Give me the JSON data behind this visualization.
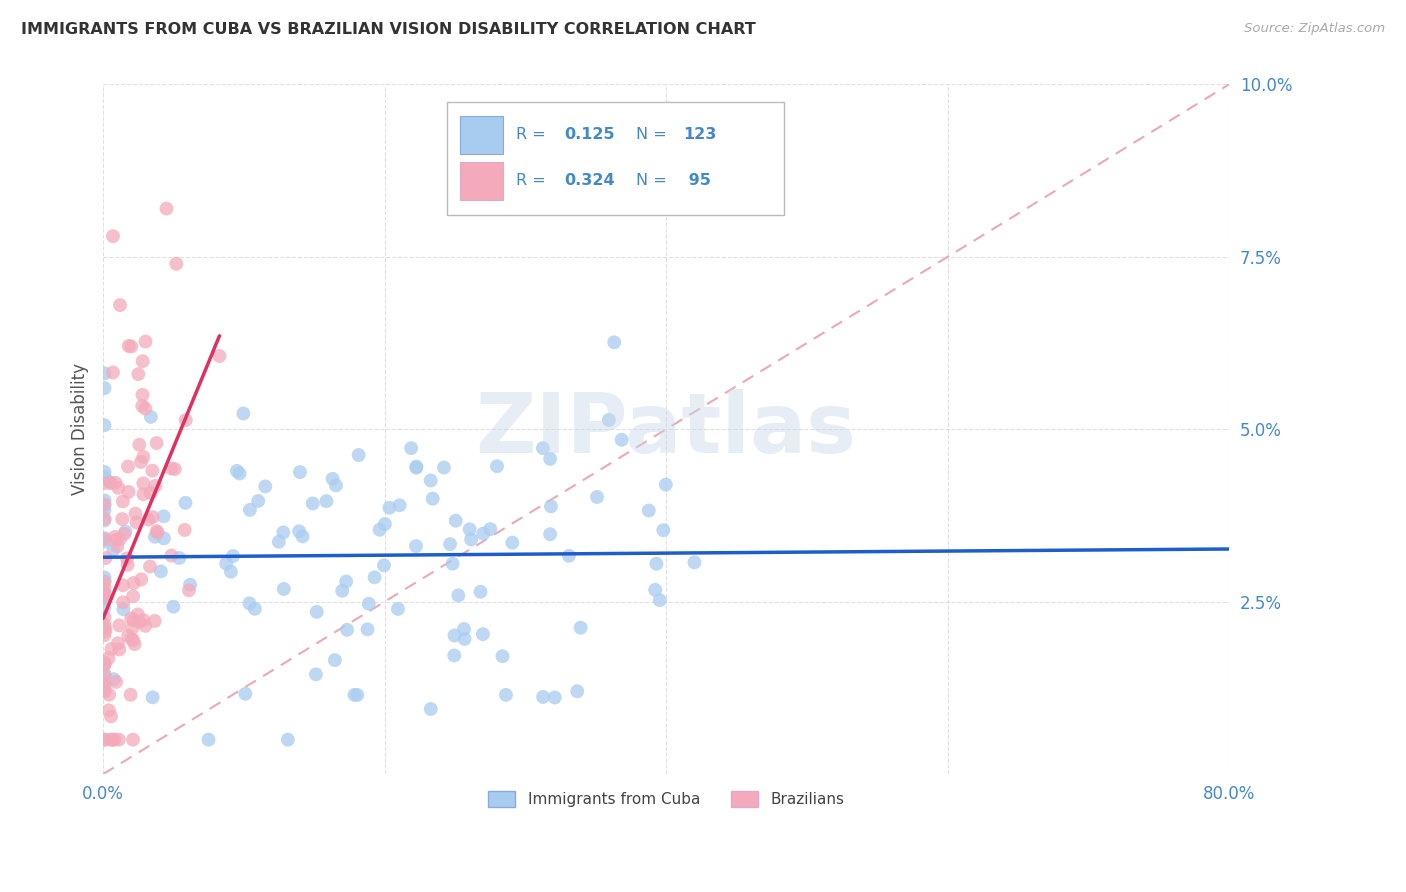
{
  "title": "IMMIGRANTS FROM CUBA VS BRAZILIAN VISION DISABILITY CORRELATION CHART",
  "source": "Source: ZipAtlas.com",
  "ylabel": "Vision Disability",
  "xlim": [
    0.0,
    0.8
  ],
  "ylim": [
    0.0,
    0.1
  ],
  "series1_color": "#A8CCF0",
  "series2_color": "#F4AABB",
  "trend1_color": "#1E5ECC",
  "trend2_color": "#E03060",
  "diagonal_color": "#E8A0B0",
  "R1": 0.125,
  "N1": 123,
  "R2": 0.324,
  "N2": 95,
  "legend_label1": "Immigrants from Cuba",
  "legend_label2": "Brazilians",
  "watermark": "ZIPatlas",
  "seed": 42,
  "background_color": "#FFFFFF",
  "grid_color": "#CCCCCC",
  "tick_color": "#4488CC",
  "title_color": "#333333",
  "source_color": "#AAAAAA",
  "ylabel_color": "#555555"
}
